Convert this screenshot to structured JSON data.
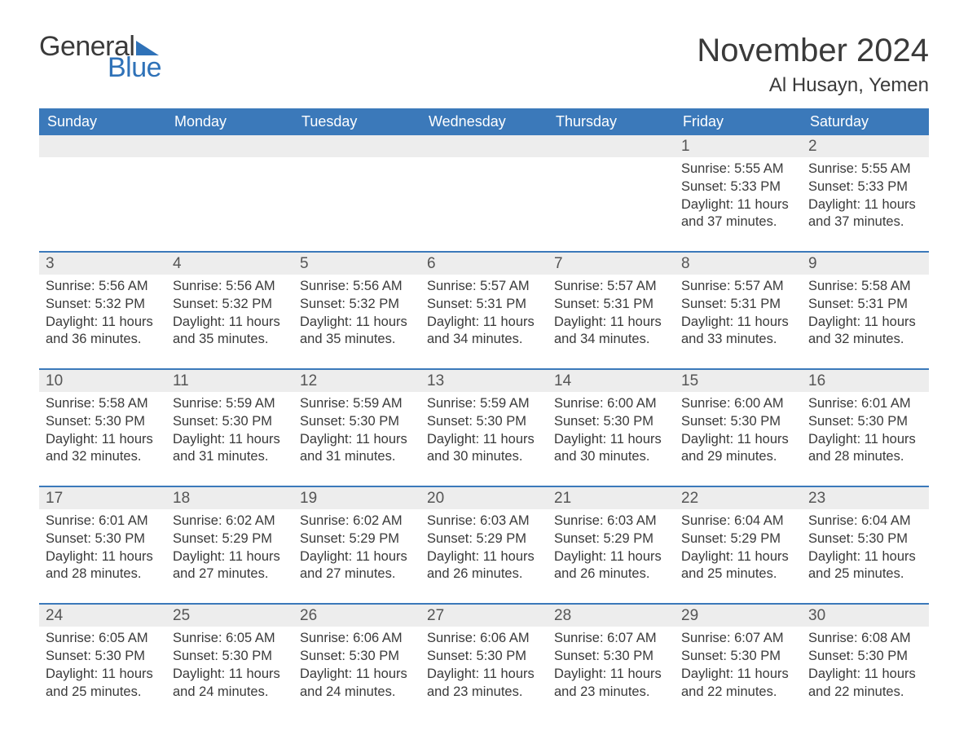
{
  "logo": {
    "word1": "General",
    "word2": "Blue",
    "tri_color": "#2f72b8"
  },
  "title": "November 2024",
  "location": "Al Husayn, Yemen",
  "colors": {
    "header_bg": "#3b79ba",
    "header_text": "#ffffff",
    "daynum_bg": "#ededed",
    "rule": "#3b79ba",
    "text": "#3a3a3a",
    "logo_blue": "#2f72b8"
  },
  "fonts": {
    "title_pt": 40,
    "location_pt": 24,
    "dayheader_pt": 18,
    "body_pt": 16.5,
    "daynum_pt": 19
  },
  "day_headers": [
    "Sunday",
    "Monday",
    "Tuesday",
    "Wednesday",
    "Thursday",
    "Friday",
    "Saturday"
  ],
  "weeks": [
    [
      {
        "n": "",
        "sunrise": "",
        "sunset": "",
        "daylight": ""
      },
      {
        "n": "",
        "sunrise": "",
        "sunset": "",
        "daylight": ""
      },
      {
        "n": "",
        "sunrise": "",
        "sunset": "",
        "daylight": ""
      },
      {
        "n": "",
        "sunrise": "",
        "sunset": "",
        "daylight": ""
      },
      {
        "n": "",
        "sunrise": "",
        "sunset": "",
        "daylight": ""
      },
      {
        "n": "1",
        "sunrise": "Sunrise: 5:55 AM",
        "sunset": "Sunset: 5:33 PM",
        "daylight": "Daylight: 11 hours and 37 minutes."
      },
      {
        "n": "2",
        "sunrise": "Sunrise: 5:55 AM",
        "sunset": "Sunset: 5:33 PM",
        "daylight": "Daylight: 11 hours and 37 minutes."
      }
    ],
    [
      {
        "n": "3",
        "sunrise": "Sunrise: 5:56 AM",
        "sunset": "Sunset: 5:32 PM",
        "daylight": "Daylight: 11 hours and 36 minutes."
      },
      {
        "n": "4",
        "sunrise": "Sunrise: 5:56 AM",
        "sunset": "Sunset: 5:32 PM",
        "daylight": "Daylight: 11 hours and 35 minutes."
      },
      {
        "n": "5",
        "sunrise": "Sunrise: 5:56 AM",
        "sunset": "Sunset: 5:32 PM",
        "daylight": "Daylight: 11 hours and 35 minutes."
      },
      {
        "n": "6",
        "sunrise": "Sunrise: 5:57 AM",
        "sunset": "Sunset: 5:31 PM",
        "daylight": "Daylight: 11 hours and 34 minutes."
      },
      {
        "n": "7",
        "sunrise": "Sunrise: 5:57 AM",
        "sunset": "Sunset: 5:31 PM",
        "daylight": "Daylight: 11 hours and 34 minutes."
      },
      {
        "n": "8",
        "sunrise": "Sunrise: 5:57 AM",
        "sunset": "Sunset: 5:31 PM",
        "daylight": "Daylight: 11 hours and 33 minutes."
      },
      {
        "n": "9",
        "sunrise": "Sunrise: 5:58 AM",
        "sunset": "Sunset: 5:31 PM",
        "daylight": "Daylight: 11 hours and 32 minutes."
      }
    ],
    [
      {
        "n": "10",
        "sunrise": "Sunrise: 5:58 AM",
        "sunset": "Sunset: 5:30 PM",
        "daylight": "Daylight: 11 hours and 32 minutes."
      },
      {
        "n": "11",
        "sunrise": "Sunrise: 5:59 AM",
        "sunset": "Sunset: 5:30 PM",
        "daylight": "Daylight: 11 hours and 31 minutes."
      },
      {
        "n": "12",
        "sunrise": "Sunrise: 5:59 AM",
        "sunset": "Sunset: 5:30 PM",
        "daylight": "Daylight: 11 hours and 31 minutes."
      },
      {
        "n": "13",
        "sunrise": "Sunrise: 5:59 AM",
        "sunset": "Sunset: 5:30 PM",
        "daylight": "Daylight: 11 hours and 30 minutes."
      },
      {
        "n": "14",
        "sunrise": "Sunrise: 6:00 AM",
        "sunset": "Sunset: 5:30 PM",
        "daylight": "Daylight: 11 hours and 30 minutes."
      },
      {
        "n": "15",
        "sunrise": "Sunrise: 6:00 AM",
        "sunset": "Sunset: 5:30 PM",
        "daylight": "Daylight: 11 hours and 29 minutes."
      },
      {
        "n": "16",
        "sunrise": "Sunrise: 6:01 AM",
        "sunset": "Sunset: 5:30 PM",
        "daylight": "Daylight: 11 hours and 28 minutes."
      }
    ],
    [
      {
        "n": "17",
        "sunrise": "Sunrise: 6:01 AM",
        "sunset": "Sunset: 5:30 PM",
        "daylight": "Daylight: 11 hours and 28 minutes."
      },
      {
        "n": "18",
        "sunrise": "Sunrise: 6:02 AM",
        "sunset": "Sunset: 5:29 PM",
        "daylight": "Daylight: 11 hours and 27 minutes."
      },
      {
        "n": "19",
        "sunrise": "Sunrise: 6:02 AM",
        "sunset": "Sunset: 5:29 PM",
        "daylight": "Daylight: 11 hours and 27 minutes."
      },
      {
        "n": "20",
        "sunrise": "Sunrise: 6:03 AM",
        "sunset": "Sunset: 5:29 PM",
        "daylight": "Daylight: 11 hours and 26 minutes."
      },
      {
        "n": "21",
        "sunrise": "Sunrise: 6:03 AM",
        "sunset": "Sunset: 5:29 PM",
        "daylight": "Daylight: 11 hours and 26 minutes."
      },
      {
        "n": "22",
        "sunrise": "Sunrise: 6:04 AM",
        "sunset": "Sunset: 5:29 PM",
        "daylight": "Daylight: 11 hours and 25 minutes."
      },
      {
        "n": "23",
        "sunrise": "Sunrise: 6:04 AM",
        "sunset": "Sunset: 5:30 PM",
        "daylight": "Daylight: 11 hours and 25 minutes."
      }
    ],
    [
      {
        "n": "24",
        "sunrise": "Sunrise: 6:05 AM",
        "sunset": "Sunset: 5:30 PM",
        "daylight": "Daylight: 11 hours and 25 minutes."
      },
      {
        "n": "25",
        "sunrise": "Sunrise: 6:05 AM",
        "sunset": "Sunset: 5:30 PM",
        "daylight": "Daylight: 11 hours and 24 minutes."
      },
      {
        "n": "26",
        "sunrise": "Sunrise: 6:06 AM",
        "sunset": "Sunset: 5:30 PM",
        "daylight": "Daylight: 11 hours and 24 minutes."
      },
      {
        "n": "27",
        "sunrise": "Sunrise: 6:06 AM",
        "sunset": "Sunset: 5:30 PM",
        "daylight": "Daylight: 11 hours and 23 minutes."
      },
      {
        "n": "28",
        "sunrise": "Sunrise: 6:07 AM",
        "sunset": "Sunset: 5:30 PM",
        "daylight": "Daylight: 11 hours and 23 minutes."
      },
      {
        "n": "29",
        "sunrise": "Sunrise: 6:07 AM",
        "sunset": "Sunset: 5:30 PM",
        "daylight": "Daylight: 11 hours and 22 minutes."
      },
      {
        "n": "30",
        "sunrise": "Sunrise: 6:08 AM",
        "sunset": "Sunset: 5:30 PM",
        "daylight": "Daylight: 11 hours and 22 minutes."
      }
    ]
  ]
}
